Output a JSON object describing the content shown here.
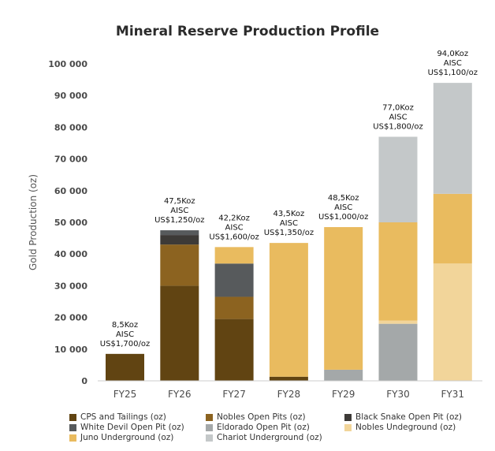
{
  "chart_data": {
    "type": "bar",
    "stacked": true,
    "title": "Mineral Reserve Production Profile",
    "xlabel": "",
    "ylabel": "Gold Production (oz)",
    "ylim": [
      0,
      100000
    ],
    "yticks": [
      0,
      10000,
      20000,
      30000,
      40000,
      50000,
      60000,
      70000,
      80000,
      90000,
      100000
    ],
    "ytick_labels": [
      "0",
      "10 000",
      "20 000",
      "30 000",
      "40 000",
      "50 000",
      "60 000",
      "70 000",
      "80 000",
      "90 000",
      "100 000"
    ],
    "grid": false,
    "legend_position": "bottom",
    "categories": [
      "FY25",
      "FY26",
      "FY27",
      "FY28",
      "FY29",
      "FY30",
      "FY31"
    ],
    "series": [
      {
        "name": "CPS and Tailings (oz)",
        "color": "#614412",
        "values": [
          8500,
          30000,
          19500,
          1300,
          0,
          0,
          0
        ]
      },
      {
        "name": "Nobles Open Pits (oz)",
        "color": "#8c6320",
        "values": [
          0,
          13000,
          7000,
          0,
          0,
          0,
          0
        ]
      },
      {
        "name": "Black Snake Open Pit (oz)",
        "color": "#3d3a37",
        "values": [
          0,
          3000,
          0,
          0,
          0,
          0,
          0
        ]
      },
      {
        "name": "White Devil Open Pit (oz)",
        "color": "#575a5c",
        "values": [
          0,
          1500,
          10500,
          0,
          0,
          0,
          0
        ]
      },
      {
        "name": "Eldorado Open Pit (oz)",
        "color": "#a4a8a9",
        "values": [
          0,
          0,
          0,
          0,
          3500,
          18000,
          0
        ]
      },
      {
        "name": "Nobles Undeground (oz)",
        "color": "#f2d59a",
        "values": [
          0,
          0,
          0,
          0,
          0,
          1000,
          37000
        ]
      },
      {
        "name": "Juno Underground (oz)",
        "color": "#e9bb5f",
        "values": [
          0,
          0,
          5200,
          42200,
          45000,
          31000,
          22000
        ]
      },
      {
        "name": "Chariot Underground (oz)",
        "color": "#c4c8c9",
        "values": [
          0,
          0,
          0,
          0,
          0,
          27000,
          35000
        ]
      }
    ],
    "annotations": [
      [
        "8,5Koz",
        "AISC",
        "US$1,700/oz"
      ],
      [
        "47,5Koz",
        "AISC",
        "US$1,250/oz"
      ],
      [
        "42,2Koz",
        "AISC",
        "US$1,600/oz"
      ],
      [
        "43,5Koz",
        "AISC",
        "US$1,350/oz"
      ],
      [
        "48,5Koz",
        "AISC",
        "US$1,000/oz"
      ],
      [
        "77,0Koz",
        "AISC",
        "US$1,800/oz"
      ],
      [
        "94,0Koz",
        "AISC",
        "US$1,100/oz"
      ]
    ]
  }
}
